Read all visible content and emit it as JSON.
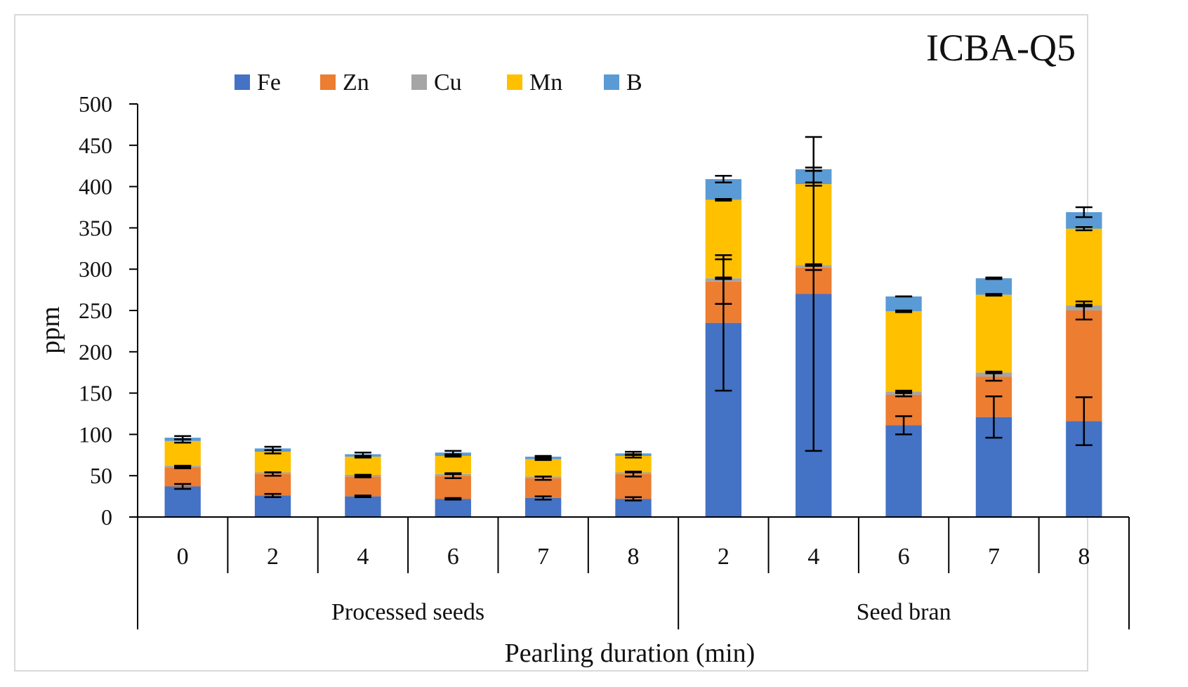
{
  "chart_data": {
    "type": "bar",
    "stacked": true,
    "title": "ICBA-Q5",
    "xlabel": "Pearling duration (min)",
    "ylabel": "ppm",
    "ylim": [
      0,
      500
    ],
    "yticks": [
      0,
      50,
      100,
      150,
      200,
      250,
      300,
      350,
      400,
      450,
      500
    ],
    "legend_position": "top-left",
    "categories": [
      "0",
      "2",
      "4",
      "6",
      "7",
      "8",
      "2",
      "4",
      "6",
      "7",
      "8"
    ],
    "groups": [
      {
        "label": "Processed seeds",
        "start": 0,
        "end": 5
      },
      {
        "label": "Seed bran",
        "start": 6,
        "end": 10
      }
    ],
    "series": [
      {
        "name": "Fe",
        "color": "#4472C4",
        "values": [
          37,
          26,
          25,
          22,
          23,
          22,
          235,
          270,
          111,
          121,
          116
        ],
        "errors": [
          3,
          2,
          1,
          1,
          2,
          2,
          82,
          190,
          11,
          25,
          29
        ]
      },
      {
        "name": "Zn",
        "color": "#ED7D31",
        "values": [
          23,
          26,
          24,
          28,
          24,
          30,
          50,
          32,
          37,
          49,
          134
        ],
        "errors": [
          1,
          2,
          1,
          3,
          2,
          3,
          27,
          3,
          2,
          5,
          11
        ]
      },
      {
        "name": "Cu",
        "color": "#A5A5A5",
        "values": [
          2,
          2,
          2,
          2,
          2,
          2,
          4,
          3,
          4,
          5,
          6
        ],
        "errors": [
          0,
          0,
          0,
          0,
          0,
          0,
          1,
          1,
          1,
          1,
          1
        ]
      },
      {
        "name": "Mn",
        "color": "#FFC000",
        "values": [
          30,
          25,
          22,
          22,
          21,
          20,
          95,
          98,
          97,
          94,
          93
        ],
        "errors": [
          2,
          2,
          1,
          1,
          1,
          2,
          1,
          2,
          1,
          1,
          2
        ]
      },
      {
        "name": "B",
        "color": "#5B9BD5",
        "values": [
          4,
          4,
          3,
          4,
          3,
          3,
          25,
          18,
          18,
          20,
          20
        ],
        "errors": [
          2,
          2,
          2,
          2,
          1,
          2,
          4,
          2,
          0,
          1,
          6
        ]
      }
    ]
  }
}
